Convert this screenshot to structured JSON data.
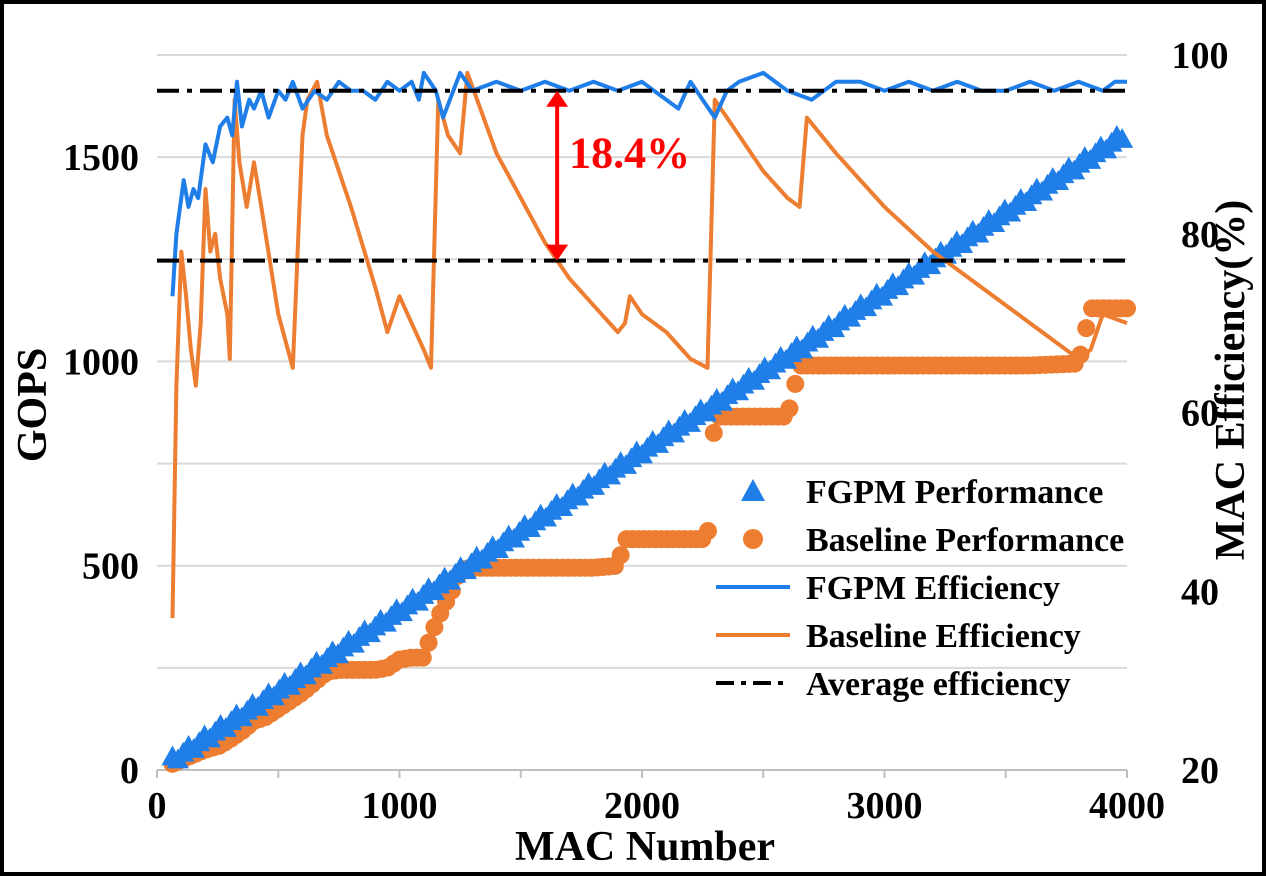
{
  "chart_data": {
    "type": "scatter",
    "title": "",
    "xlabel": "MAC Number",
    "ylabel": "GOPS",
    "y2label": "MAC Efficiency(%)",
    "xlim": [
      0,
      4000
    ],
    "ylim": [
      0,
      1750
    ],
    "y2lim": [
      20,
      100
    ],
    "x_ticks": [
      "0",
      "1000",
      "2000",
      "3000",
      "4000"
    ],
    "y_ticks": [
      "0",
      "500",
      "1000",
      "1500"
    ],
    "y2_ticks": [
      "20",
      "40",
      "60",
      "80",
      "100"
    ],
    "grid": "horizontal",
    "legend_position": "bottom-right",
    "colors": {
      "fgpm": "#1f7ee8",
      "baseline": "#ed7d31",
      "average": "#000000",
      "annotation": "#ff0000"
    },
    "series": [
      {
        "name": "FGPM Performance",
        "kind": "triangle-markers",
        "axis": "left",
        "description": "linear ~0.39 GOPS per MAC",
        "x_range": [
          64,
          4000
        ],
        "values_at": {
          "1000": 390,
          "2000": 780,
          "3000": 1170,
          "4000": 1560
        }
      },
      {
        "name": "Baseline Performance",
        "kind": "circle-markers",
        "axis": "left",
        "points": [
          [
            64,
            15
          ],
          [
            100,
            25
          ],
          [
            160,
            40
          ],
          [
            200,
            50
          ],
          [
            260,
            60
          ],
          [
            300,
            75
          ],
          [
            350,
            95
          ],
          [
            400,
            120
          ],
          [
            450,
            130
          ],
          [
            500,
            150
          ],
          [
            550,
            170
          ],
          [
            600,
            190
          ],
          [
            650,
            215
          ],
          [
            700,
            240
          ],
          [
            750,
            245
          ],
          [
            800,
            245
          ],
          [
            850,
            245
          ],
          [
            900,
            245
          ],
          [
            950,
            250
          ],
          [
            1000,
            270
          ],
          [
            1050,
            275
          ],
          [
            1100,
            275
          ],
          [
            1130,
            330
          ],
          [
            1180,
            400
          ],
          [
            1210,
            430
          ],
          [
            1250,
            490
          ],
          [
            1300,
            495
          ],
          [
            1400,
            495
          ],
          [
            1500,
            495
          ],
          [
            1600,
            495
          ],
          [
            1700,
            495
          ],
          [
            1800,
            495
          ],
          [
            1900,
            500
          ],
          [
            1930,
            565
          ],
          [
            2000,
            565
          ],
          [
            2100,
            565
          ],
          [
            2200,
            565
          ],
          [
            2270,
            565
          ],
          [
            2300,
            865
          ],
          [
            2400,
            865
          ],
          [
            2500,
            865
          ],
          [
            2600,
            865
          ],
          [
            2650,
            990
          ],
          [
            2800,
            990
          ],
          [
            3000,
            990
          ],
          [
            3200,
            990
          ],
          [
            3400,
            990
          ],
          [
            3600,
            990
          ],
          [
            3800,
            995
          ],
          [
            3850,
            1130
          ],
          [
            3900,
            1130
          ],
          [
            4000,
            1130
          ]
        ]
      },
      {
        "name": "FGPM Efficiency",
        "kind": "line",
        "axis": "right",
        "points": [
          [
            64,
            73
          ],
          [
            80,
            80
          ],
          [
            110,
            86
          ],
          [
            130,
            83
          ],
          [
            150,
            85
          ],
          [
            170,
            84
          ],
          [
            200,
            90
          ],
          [
            230,
            88
          ],
          [
            260,
            92
          ],
          [
            290,
            93
          ],
          [
            310,
            91
          ],
          [
            330,
            97
          ],
          [
            350,
            92
          ],
          [
            380,
            95
          ],
          [
            400,
            94
          ],
          [
            430,
            96
          ],
          [
            460,
            93
          ],
          [
            500,
            96
          ],
          [
            530,
            95
          ],
          [
            560,
            97
          ],
          [
            600,
            94
          ],
          [
            650,
            96
          ],
          [
            700,
            95
          ],
          [
            750,
            97
          ],
          [
            800,
            96
          ],
          [
            850,
            96
          ],
          [
            900,
            95
          ],
          [
            950,
            97
          ],
          [
            1000,
            96
          ],
          [
            1050,
            97
          ],
          [
            1080,
            95
          ],
          [
            1100,
            98
          ],
          [
            1150,
            96
          ],
          [
            1180,
            93
          ],
          [
            1250,
            98
          ],
          [
            1300,
            96
          ],
          [
            1400,
            97
          ],
          [
            1500,
            96
          ],
          [
            1600,
            97
          ],
          [
            1700,
            96
          ],
          [
            1800,
            97
          ],
          [
            1900,
            96
          ],
          [
            2000,
            97
          ],
          [
            2050,
            96
          ],
          [
            2100,
            95
          ],
          [
            2150,
            94
          ],
          [
            2200,
            97
          ],
          [
            2250,
            95
          ],
          [
            2300,
            93
          ],
          [
            2350,
            96
          ],
          [
            2400,
            97
          ],
          [
            2500,
            98
          ],
          [
            2600,
            96
          ],
          [
            2700,
            95
          ],
          [
            2800,
            97
          ],
          [
            2900,
            97
          ],
          [
            3000,
            96
          ],
          [
            3100,
            97
          ],
          [
            3200,
            96
          ],
          [
            3300,
            97
          ],
          [
            3400,
            96
          ],
          [
            3500,
            96
          ],
          [
            3600,
            97
          ],
          [
            3700,
            96
          ],
          [
            3800,
            97
          ],
          [
            3900,
            96
          ],
          [
            3950,
            97
          ],
          [
            4000,
            97
          ]
        ]
      },
      {
        "name": "Baseline Efficiency",
        "kind": "line",
        "axis": "right",
        "points": [
          [
            64,
            37
          ],
          [
            80,
            63
          ],
          [
            100,
            78
          ],
          [
            120,
            73
          ],
          [
            140,
            67
          ],
          [
            160,
            63
          ],
          [
            180,
            70
          ],
          [
            200,
            85
          ],
          [
            220,
            78
          ],
          [
            240,
            80
          ],
          [
            260,
            75
          ],
          [
            290,
            71
          ],
          [
            300,
            66
          ],
          [
            320,
            95
          ],
          [
            340,
            88
          ],
          [
            370,
            83
          ],
          [
            400,
            88
          ],
          [
            430,
            83
          ],
          [
            500,
            71
          ],
          [
            560,
            65
          ],
          [
            600,
            91
          ],
          [
            620,
            95
          ],
          [
            660,
            97
          ],
          [
            700,
            91
          ],
          [
            800,
            83
          ],
          [
            900,
            74
          ],
          [
            950,
            69
          ],
          [
            1000,
            73
          ],
          [
            1050,
            70
          ],
          [
            1100,
            67
          ],
          [
            1130,
            65
          ],
          [
            1160,
            95
          ],
          [
            1200,
            91
          ],
          [
            1250,
            89
          ],
          [
            1280,
            98
          ],
          [
            1400,
            89
          ],
          [
            1500,
            84
          ],
          [
            1600,
            79
          ],
          [
            1700,
            75
          ],
          [
            1800,
            72
          ],
          [
            1900,
            69
          ],
          [
            1930,
            70
          ],
          [
            1950,
            73
          ],
          [
            2000,
            71
          ],
          [
            2100,
            69
          ],
          [
            2200,
            66
          ],
          [
            2270,
            65
          ],
          [
            2300,
            95
          ],
          [
            2400,
            91
          ],
          [
            2500,
            87
          ],
          [
            2600,
            84
          ],
          [
            2650,
            83
          ],
          [
            2680,
            93
          ],
          [
            2800,
            89
          ],
          [
            3000,
            83
          ],
          [
            3200,
            78
          ],
          [
            3400,
            74
          ],
          [
            3600,
            70
          ],
          [
            3800,
            66
          ],
          [
            3850,
            67
          ],
          [
            3900,
            71
          ],
          [
            4000,
            70
          ]
        ]
      },
      {
        "name": "Average efficiency",
        "kind": "dashdot-lines",
        "axis": "right",
        "levels": [
          96,
          77
        ]
      }
    ],
    "legend": [
      "FGPM Performance",
      "Baseline Performance",
      "FGPM Efficiency",
      "Baseline Efficiency",
      "Average efficiency"
    ],
    "annotation": {
      "text": "18.4%",
      "x": 1650,
      "from_efficiency": 77,
      "to_efficiency": 96
    }
  }
}
